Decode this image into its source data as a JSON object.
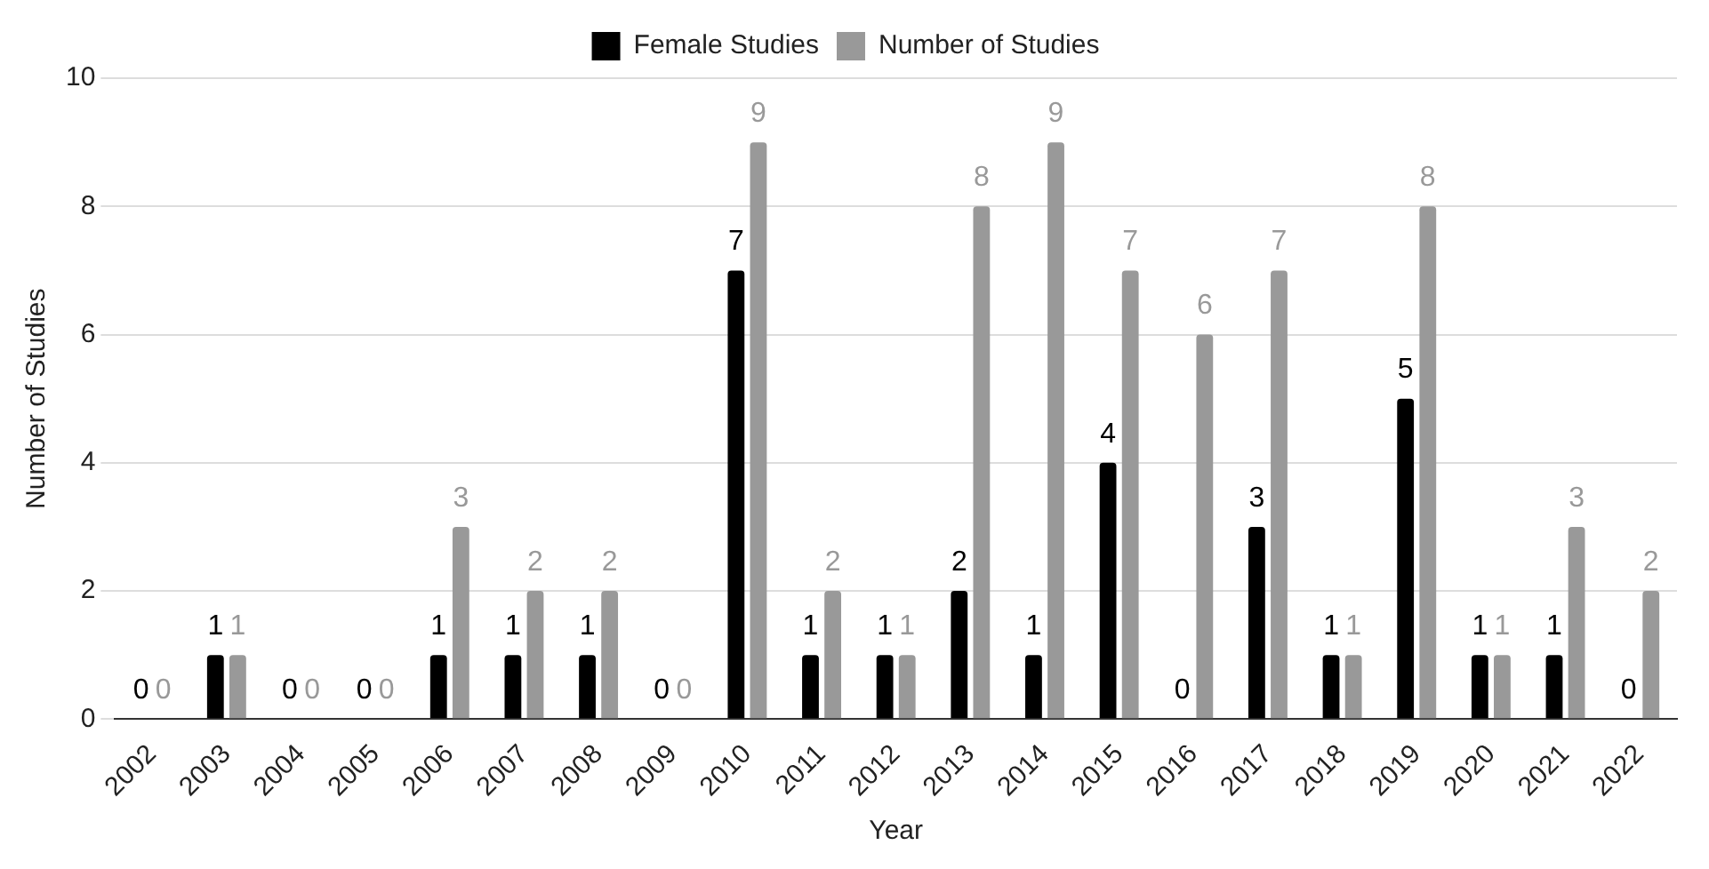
{
  "chart_data": {
    "type": "bar",
    "xlabel": "Year",
    "ylabel": "Number of Studies",
    "categories": [
      "2002",
      "2003",
      "2004",
      "2005",
      "2006",
      "2007",
      "2008",
      "2009",
      "2010",
      "2011",
      "2012",
      "2013",
      "2014",
      "2015",
      "2016",
      "2017",
      "2018",
      "2019",
      "2020",
      "2021",
      "2022"
    ],
    "series": [
      {
        "name": "Female Studies",
        "color": "#000000",
        "values": [
          0,
          1,
          0,
          0,
          1,
          1,
          1,
          0,
          7,
          1,
          1,
          2,
          1,
          4,
          0,
          3,
          1,
          5,
          1,
          1,
          0
        ]
      },
      {
        "name": "Number of Studies",
        "color": "#999999",
        "values": [
          0,
          1,
          0,
          0,
          3,
          2,
          2,
          0,
          9,
          2,
          1,
          8,
          9,
          7,
          6,
          7,
          1,
          8,
          1,
          3,
          2
        ]
      }
    ],
    "ylim": [
      0,
      10
    ],
    "yticks": [
      0,
      2,
      4,
      6,
      8,
      10
    ],
    "grid": "y",
    "legend": "top",
    "data_labels": true
  }
}
